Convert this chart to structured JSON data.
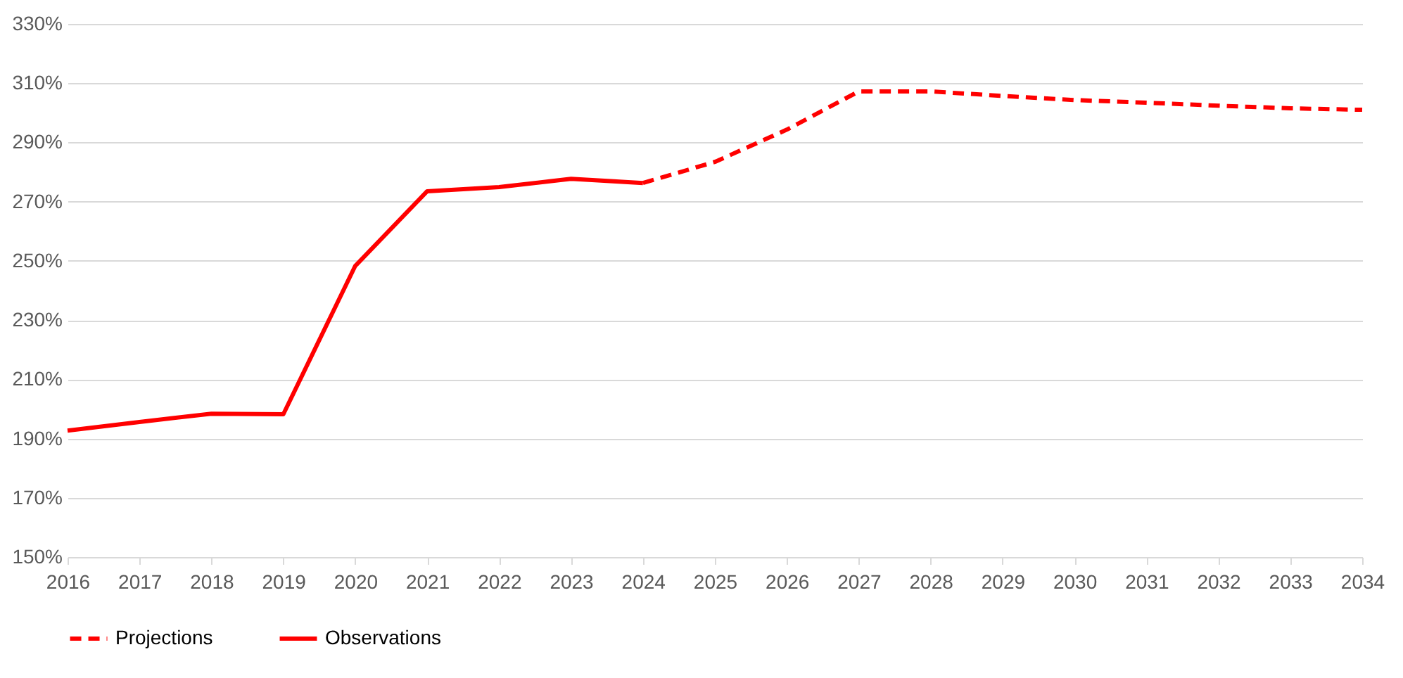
{
  "chart_data": {
    "type": "line",
    "categories": [
      "2016",
      "2017",
      "2018",
      "2019",
      "2020",
      "2021",
      "2022",
      "2023",
      "2024",
      "2025",
      "2026",
      "2027",
      "2028",
      "2029",
      "2030",
      "2031",
      "2032",
      "2033",
      "2034"
    ],
    "series": [
      {
        "name": "Projections",
        "color": "#ff0000",
        "line_style": "dashed",
        "values": [
          null,
          null,
          null,
          null,
          null,
          null,
          null,
          null,
          276.3,
          283.4,
          294.3,
          307.2,
          307.2,
          305.7,
          304.3,
          303.4,
          302.4,
          301.5,
          301.0
        ]
      },
      {
        "name": "Observations",
        "color": "#ff0000",
        "line_style": "solid",
        "values": [
          192.7,
          195.6,
          198.4,
          198.2,
          248.3,
          273.5,
          274.9,
          277.7,
          276.3,
          null,
          null,
          null,
          null,
          null,
          null,
          null,
          null,
          null,
          null
        ]
      }
    ],
    "ylim": [
      150,
      330
    ],
    "yticks": [
      {
        "value": 150,
        "label": "150%"
      },
      {
        "value": 170,
        "label": "170%"
      },
      {
        "value": 190,
        "label": "190%"
      },
      {
        "value": 210,
        "label": "210%"
      },
      {
        "value": 230,
        "label": "230%"
      },
      {
        "value": 250,
        "label": "250%"
      },
      {
        "value": 270,
        "label": "270%"
      },
      {
        "value": 290,
        "label": "290%"
      },
      {
        "value": 310,
        "label": "310%"
      },
      {
        "value": 330,
        "label": "330%"
      }
    ],
    "grid": "y",
    "legend": "bottom",
    "marker": "none"
  }
}
